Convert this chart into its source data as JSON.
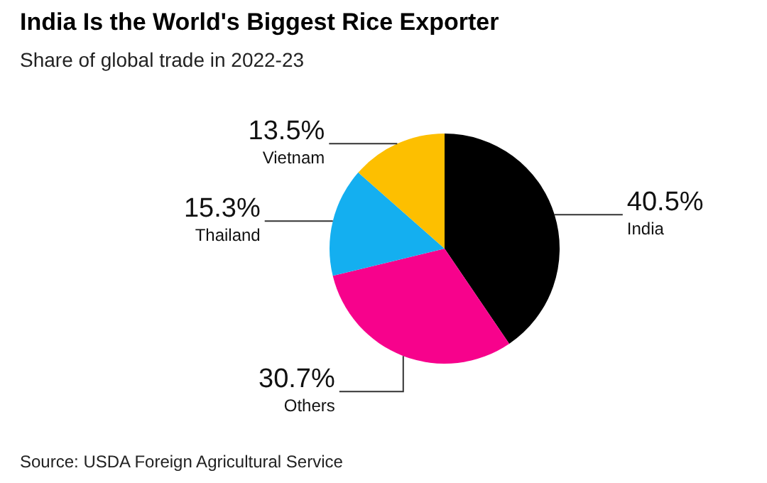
{
  "chart_data": {
    "type": "pie",
    "title": "India Is the World's Biggest Rice Exporter",
    "subtitle": "Share of global trade in 2022-23",
    "categories": [
      "India",
      "Others",
      "Thailand",
      "Vietnam"
    ],
    "values": [
      40.5,
      30.7,
      15.3,
      13.5
    ],
    "value_labels": [
      "40.5%",
      "30.7%",
      "15.3%",
      "13.5%"
    ],
    "colors": [
      "#000000",
      "#f7028c",
      "#14aff0",
      "#fdbf00"
    ],
    "annotations": [
      "Source: USDA Foreign Agricultural Service"
    ]
  }
}
